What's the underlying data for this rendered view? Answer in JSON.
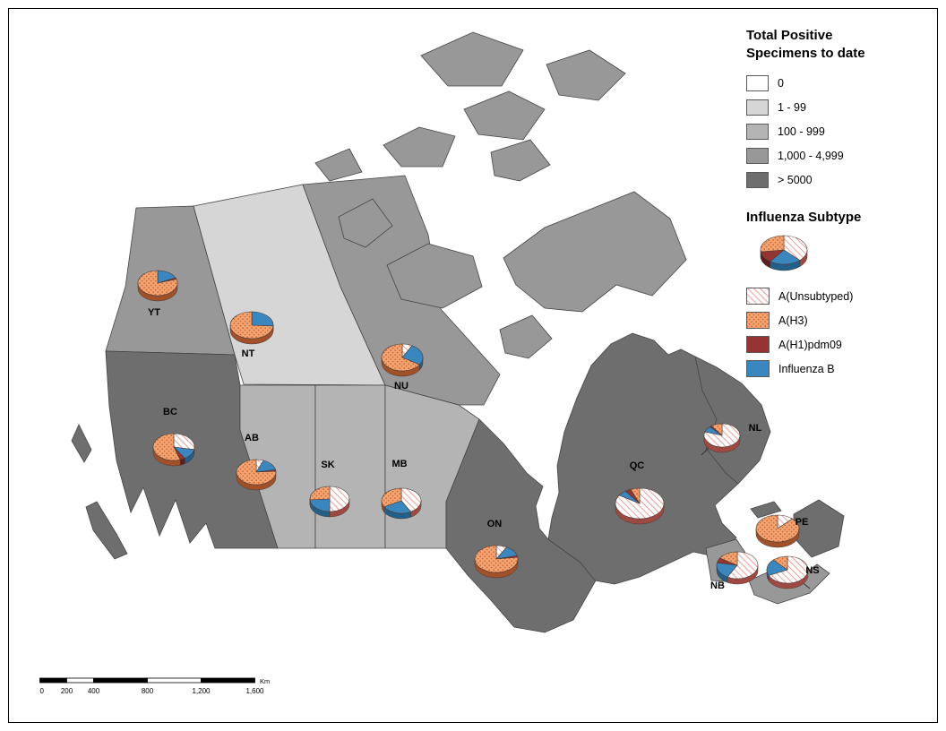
{
  "legend": {
    "title_line1": "Total Positive",
    "title_line2": "Specimens to date",
    "classes": [
      {
        "label": "0",
        "color": "#FFFFFF"
      },
      {
        "label": "1 - 99",
        "color": "#D6D6D6"
      },
      {
        "label": "100 - 999",
        "color": "#B4B4B4"
      },
      {
        "label": "1,000 - 4,999",
        "color": "#989898"
      },
      {
        "label": "> 5000",
        "color": "#6E6E6E"
      }
    ],
    "subtype_title": "Influenza Subtype",
    "subtypes": [
      {
        "label": "A(Unsubtyped)",
        "fill": "hatch",
        "color": "#E2766B"
      },
      {
        "label": "A(H3)",
        "fill": "dots",
        "color": "#F5A471"
      },
      {
        "label": "A(H1)pdm09",
        "fill": "solid",
        "color": "#943534"
      },
      {
        "label": "Influenza B",
        "fill": "solid",
        "color": "#3A87C0"
      }
    ],
    "sample_pie": {
      "unsubtyped": 38,
      "h3": 27,
      "h1pdm09": 13,
      "influenza_b": 22
    }
  },
  "map": {
    "provinces": [
      {
        "code": "YT",
        "label": "YT",
        "total_class": "1,000 - 4,999",
        "pie_percent": {
          "unsubtyped": 0,
          "h3": 80,
          "h1pdm09": 2,
          "influenza_b": 18
        }
      },
      {
        "code": "NT",
        "label": "NT",
        "total_class": "1 - 99",
        "pie_percent": {
          "unsubtyped": 0,
          "h3": 74,
          "h1pdm09": 0,
          "influenza_b": 26
        }
      },
      {
        "code": "NU",
        "label": "NU",
        "total_class": "1,000 - 4,999",
        "pie_percent": {
          "unsubtyped": 8,
          "h3": 66,
          "h1pdm09": 0,
          "influenza_b": 26
        }
      },
      {
        "code": "BC",
        "label": "BC",
        "total_class": "> 5000",
        "pie_percent": {
          "unsubtyped": 28,
          "h3": 55,
          "h1pdm09": 4,
          "influenza_b": 13
        }
      },
      {
        "code": "AB",
        "label": "AB",
        "total_class": "100 - 999",
        "pie_percent": {
          "unsubtyped": 6,
          "h3": 76,
          "h1pdm09": 2,
          "influenza_b": 16
        }
      },
      {
        "code": "SK",
        "label": "SK",
        "total_class": "100 - 999",
        "pie_percent": {
          "unsubtyped": 50,
          "h3": 26,
          "h1pdm09": 0,
          "influenza_b": 24
        }
      },
      {
        "code": "MB",
        "label": "MB",
        "total_class": "100 - 999",
        "pie_percent": {
          "unsubtyped": 42,
          "h3": 33,
          "h1pdm09": 0,
          "influenza_b": 25
        }
      },
      {
        "code": "ON",
        "label": "ON",
        "total_class": "> 5000",
        "pie_percent": {
          "unsubtyped": 8,
          "h3": 77,
          "h1pdm09": 2,
          "influenza_b": 13
        }
      },
      {
        "code": "QC",
        "label": "QC",
        "total_class": "> 5000",
        "pie_percent": {
          "unsubtyped": 84,
          "h3": 6,
          "h1pdm09": 4,
          "influenza_b": 6
        }
      },
      {
        "code": "NL",
        "label": "NL",
        "total_class": "> 5000",
        "pie_percent": {
          "unsubtyped": 80,
          "h3": 10,
          "h1pdm09": 2,
          "influenza_b": 8
        }
      },
      {
        "code": "PE",
        "label": "PE",
        "total_class": "1,000 - 4,999",
        "pie_percent": {
          "unsubtyped": 12,
          "h3": 88,
          "h1pdm09": 0,
          "influenza_b": 0
        }
      },
      {
        "code": "NB",
        "label": "NB",
        "total_class": "1,000 - 4,999",
        "pie_percent": {
          "unsubtyped": 58,
          "h3": 16,
          "h1pdm09": 6,
          "influenza_b": 20
        }
      },
      {
        "code": "NS",
        "label": "NS",
        "total_class": "1,000 - 4,999",
        "pie_percent": {
          "unsubtyped": 68,
          "h3": 12,
          "h1pdm09": 0,
          "influenza_b": 20
        }
      }
    ]
  },
  "scalebar": {
    "labels": [
      "0",
      "200",
      "400",
      "800",
      "1,200",
      "1,600"
    ],
    "unit": "Km"
  }
}
